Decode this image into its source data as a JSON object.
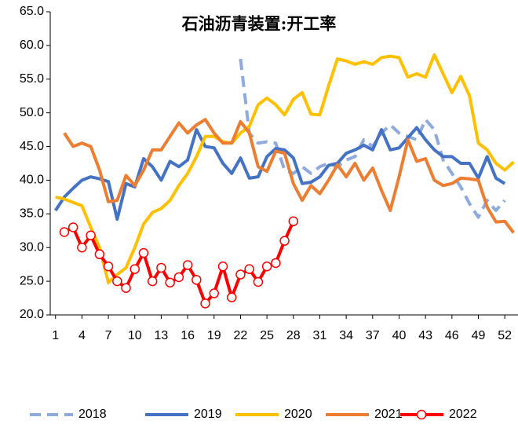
{
  "chart_data": {
    "type": "line",
    "title": "石油沥青装置:开工率",
    "x": [
      1,
      2,
      3,
      4,
      5,
      6,
      7,
      8,
      9,
      10,
      11,
      12,
      13,
      14,
      15,
      16,
      17,
      18,
      19,
      20,
      21,
      22,
      23,
      24,
      25,
      26,
      27,
      28,
      29,
      30,
      31,
      32,
      33,
      34,
      35,
      36,
      37,
      38,
      39,
      40,
      41,
      42,
      43,
      44,
      45,
      46,
      47,
      48,
      49,
      50,
      51,
      52,
      53
    ],
    "xlim": [
      0.4,
      53.5
    ],
    "xticks": [
      1,
      4,
      7,
      10,
      13,
      16,
      19,
      22,
      25,
      28,
      31,
      34,
      37,
      40,
      43,
      46,
      49,
      52
    ],
    "ylim": [
      20,
      65
    ],
    "yticks": [
      {
        "value": 20,
        "label": "20.0"
      },
      {
        "value": 25,
        "label": "25.0"
      },
      {
        "value": 30,
        "label": "30.0"
      },
      {
        "value": 35,
        "label": "35.0"
      },
      {
        "value": 40,
        "label": "40.0"
      },
      {
        "value": 45,
        "label": "45.0"
      },
      {
        "value": 50,
        "label": "50.0"
      },
      {
        "value": 55,
        "label": "55.0"
      },
      {
        "value": 60,
        "label": "60.0"
      },
      {
        "value": 65,
        "label": "65.0"
      }
    ],
    "legend": "bottom",
    "series": [
      {
        "name": "2018",
        "color": "#8faadc",
        "dash": true,
        "values": [
          null,
          null,
          null,
          null,
          null,
          null,
          null,
          null,
          null,
          null,
          null,
          null,
          null,
          null,
          null,
          null,
          null,
          null,
          null,
          null,
          null,
          58,
          47,
          45.5,
          45.7,
          45.5,
          41.5,
          41,
          42,
          41,
          42,
          42.5,
          42,
          43,
          43.5,
          46,
          45,
          47,
          48.2,
          47,
          46.5,
          46,
          49,
          47.5,
          43,
          41,
          39,
          36.5,
          34.5,
          37,
          35.5,
          37,
          null
        ]
      },
      {
        "name": "2019",
        "color": "#4472c4",
        "values": [
          35.5,
          37.5,
          38.8,
          40,
          40.5,
          40.2,
          39.8,
          34.2,
          39.5,
          39,
          43.2,
          42,
          40,
          42.8,
          42,
          43,
          47.5,
          45,
          44.8,
          42.5,
          41,
          43.3,
          40.3,
          40.5,
          43.5,
          44.7,
          44.5,
          43.3,
          39.5,
          39.7,
          40.5,
          42.2,
          42.5,
          44,
          44.5,
          45.2,
          44.5,
          47.5,
          44.5,
          44.8,
          46.3,
          47.8,
          46,
          44.5,
          43.5,
          43.5,
          42.5,
          42.5,
          40.3,
          43.5,
          40.3,
          39.5,
          null
        ]
      },
      {
        "name": "2020",
        "color": "#ffc000",
        "values": [
          37.5,
          37.2,
          36.7,
          36.2,
          33,
          30,
          24.8,
          26,
          27,
          30,
          33.5,
          35.2,
          35.8,
          37,
          39.2,
          41,
          43.5,
          46.5,
          46.5,
          45.7,
          45.5,
          47,
          48,
          51.2,
          52.2,
          51.2,
          49.7,
          52,
          53,
          49.8,
          49.7,
          54,
          58,
          57.7,
          57.2,
          57.6,
          57.2,
          58.2,
          58.4,
          58.2,
          55.3,
          55.8,
          55.3,
          58.6,
          55.8,
          53,
          55.4,
          52.5,
          45.5,
          44.5,
          42.5,
          41.5,
          42.7
        ]
      },
      {
        "name": "2021",
        "color": "#ed7d31",
        "values": [
          null,
          47,
          45,
          45.5,
          45,
          41.5,
          36.8,
          37,
          40.7,
          39.2,
          41.5,
          44.5,
          44.5,
          46.5,
          48.5,
          47,
          48.2,
          49,
          47,
          45.5,
          45.5,
          48.7,
          47,
          42,
          41.3,
          44.3,
          44,
          39.5,
          37,
          39.2,
          38,
          40,
          42.3,
          40.5,
          42.5,
          40,
          41.8,
          38.5,
          35.5,
          40.5,
          46,
          42.8,
          43.2,
          40,
          39.2,
          39.5,
          40.3,
          40.2,
          40,
          36,
          33.8,
          33.9,
          32.2
        ]
      },
      {
        "name": "2022",
        "color": "#ff0000",
        "marker": true,
        "values": [
          null,
          32.3,
          33,
          30,
          31.8,
          29,
          27.2,
          25,
          24,
          26.8,
          29.2,
          25,
          27,
          24.8,
          25.6,
          27.4,
          25.2,
          21.7,
          23.2,
          27.2,
          22.6,
          26,
          26.8,
          24.9,
          27.2,
          27.7,
          31,
          33.9,
          null,
          null,
          null,
          null,
          null,
          null,
          null,
          null,
          null,
          null,
          null,
          null,
          null,
          null,
          null,
          null,
          null,
          null,
          null,
          null,
          null,
          null,
          null,
          null,
          null
        ]
      }
    ]
  }
}
